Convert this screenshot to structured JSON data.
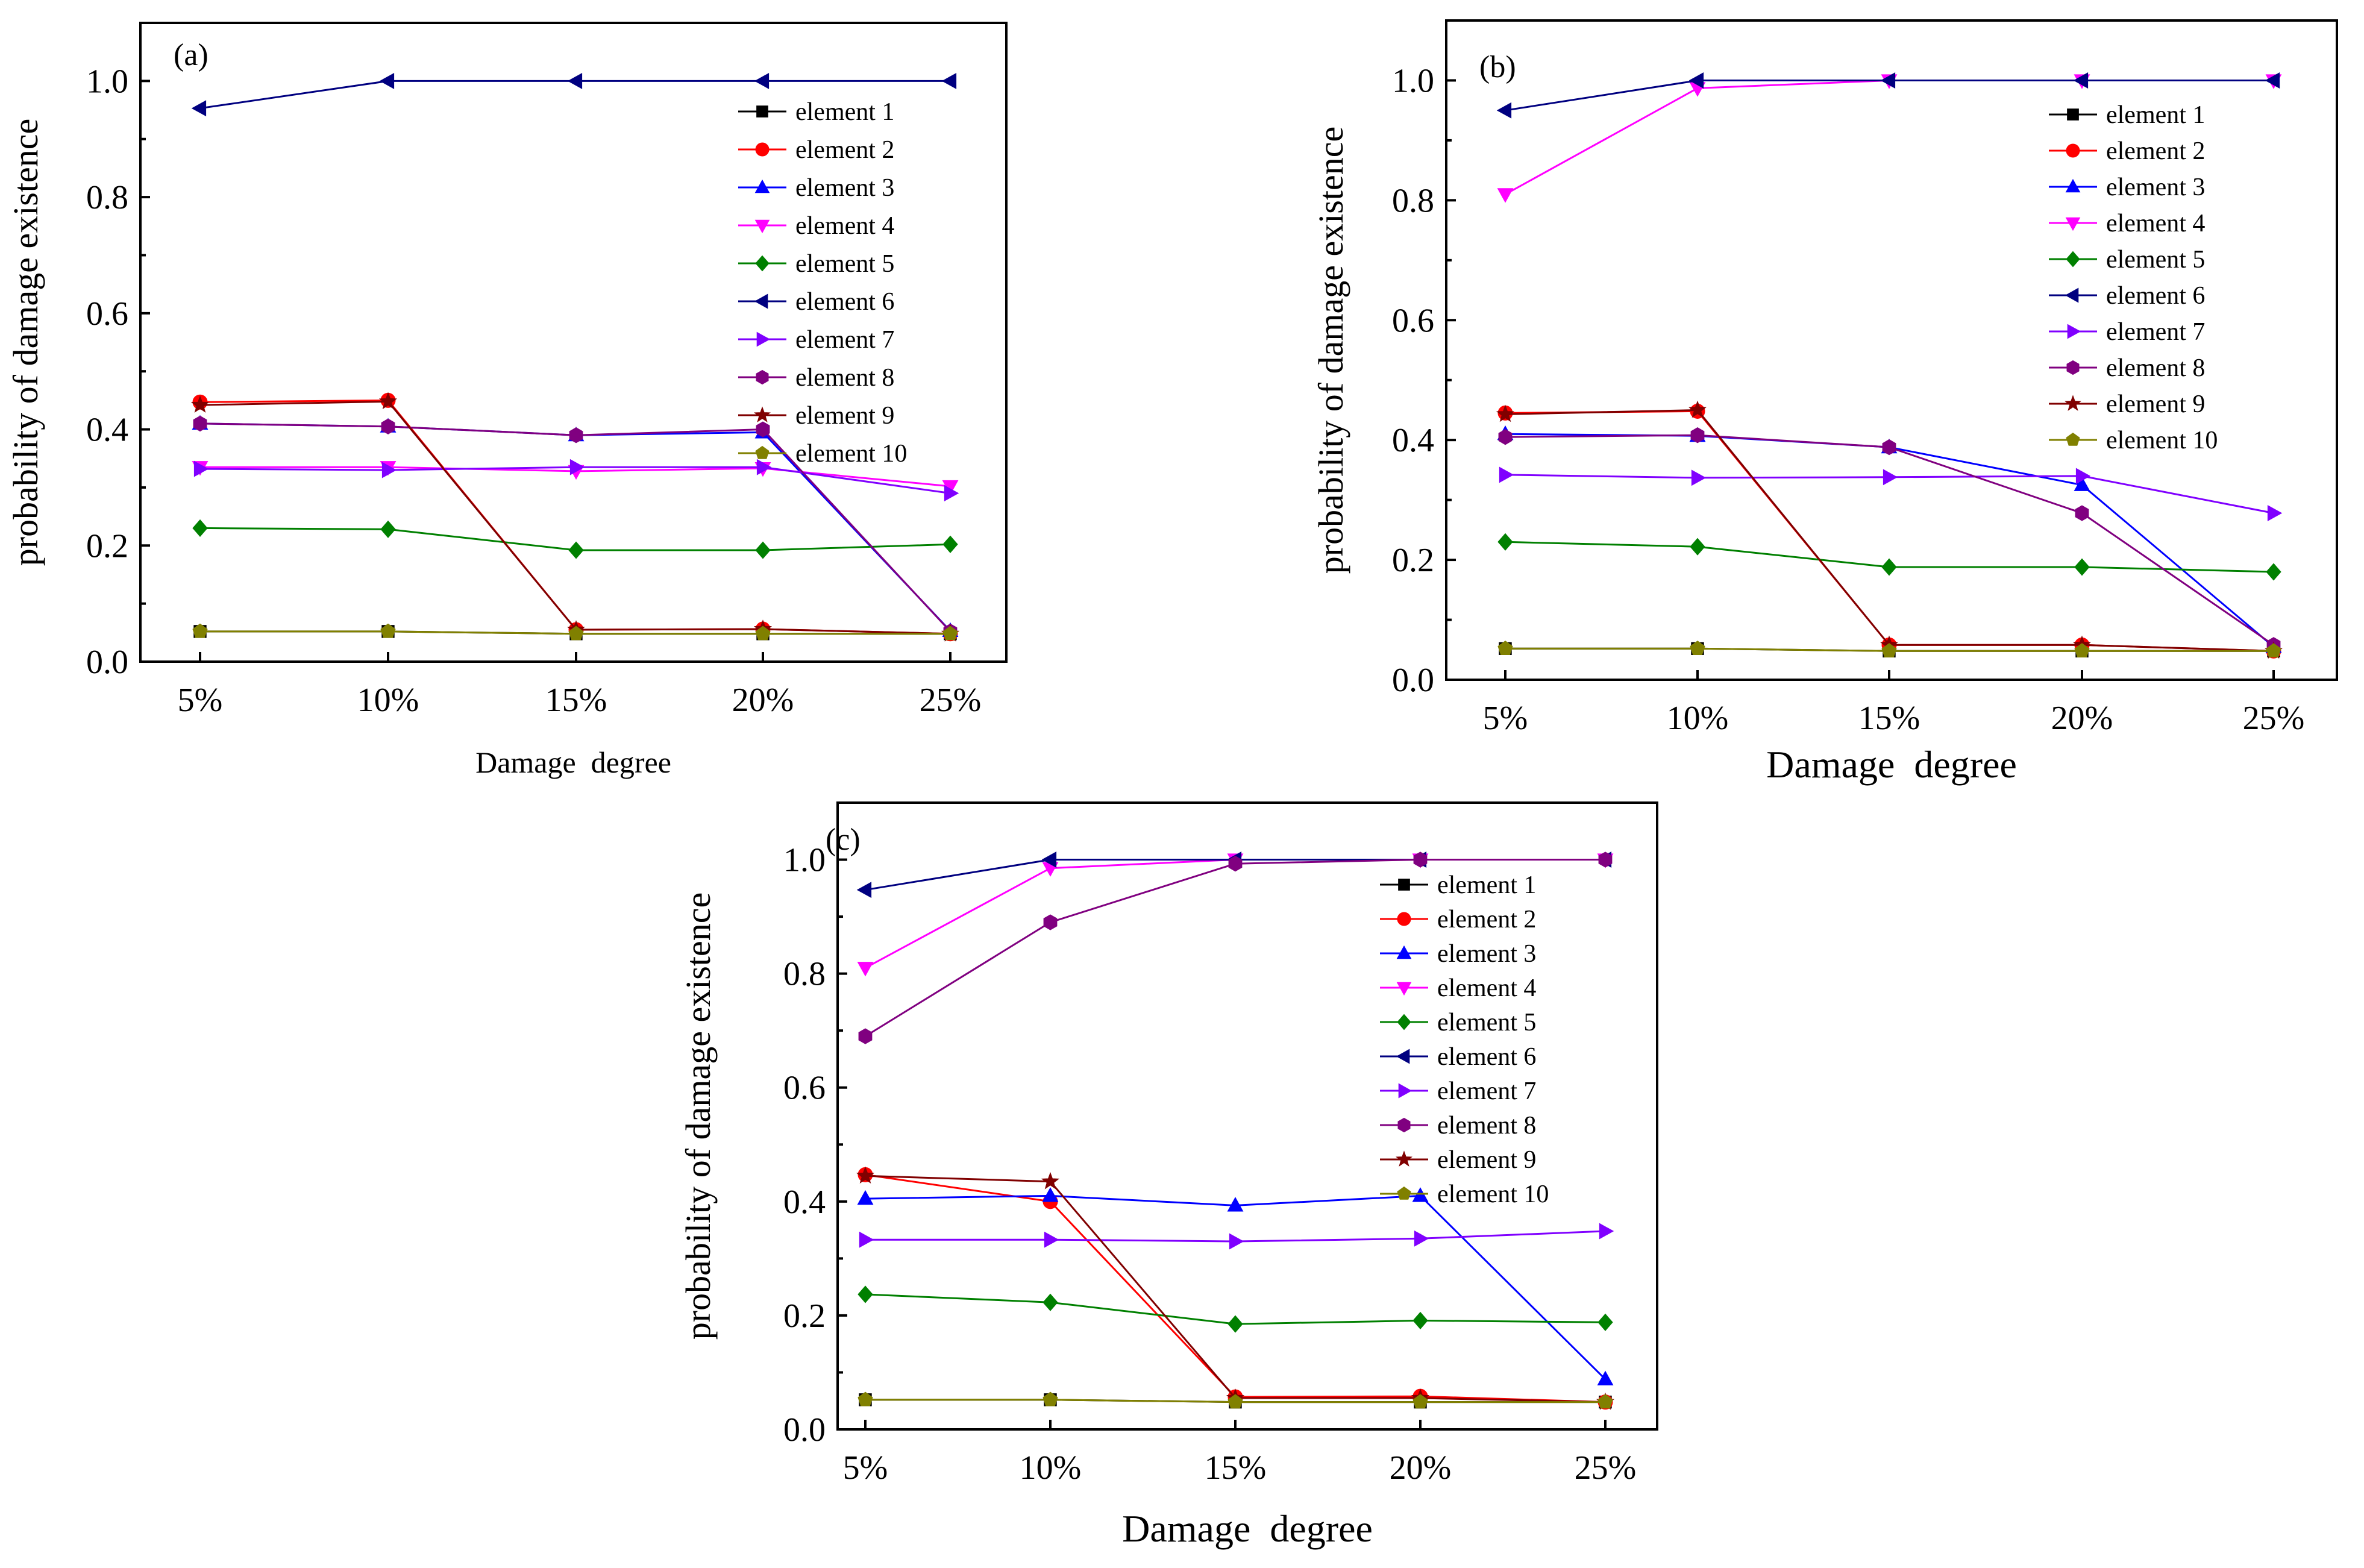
{
  "chart_data": [
    {
      "type": "line",
      "panel_label": "(a)",
      "xlabel": "Damage  degree",
      "ylabel": "probability of damage existence",
      "categories": [
        "5%",
        "10%",
        "15%",
        "20%",
        "25%"
      ],
      "ylim": [
        0,
        1.1
      ],
      "yticks": [
        "0.0",
        "0.2",
        "0.4",
        "0.6",
        "0.8",
        "1.0"
      ],
      "legend_position": "right",
      "series": [
        {
          "name": "element 1",
          "color": "#000000",
          "marker": "square",
          "values": [
            0.052,
            0.052,
            0.048,
            0.048,
            0.048
          ]
        },
        {
          "name": "element 2",
          "color": "#ff0000",
          "marker": "circle",
          "values": [
            0.447,
            0.45,
            0.055,
            0.056,
            0.048
          ]
        },
        {
          "name": "element 3",
          "color": "#0000ff",
          "marker": "triangle-up",
          "values": [
            0.41,
            0.405,
            0.39,
            0.395,
            0.053
          ]
        },
        {
          "name": "element 4",
          "color": "#ff00ff",
          "marker": "triangle-down",
          "values": [
            0.335,
            0.335,
            0.328,
            0.333,
            0.302
          ]
        },
        {
          "name": "element 5",
          "color": "#008000",
          "marker": "diamond",
          "values": [
            0.23,
            0.228,
            0.192,
            0.192,
            0.202
          ]
        },
        {
          "name": "element 6",
          "color": "#000080",
          "marker": "triangle-left",
          "values": [
            0.953,
            1.0,
            1.0,
            1.0,
            1.0
          ]
        },
        {
          "name": "element 7",
          "color": "#8000ff",
          "marker": "triangle-right",
          "values": [
            0.332,
            0.33,
            0.335,
            0.335,
            0.29
          ]
        },
        {
          "name": "element 8",
          "color": "#800080",
          "marker": "hexagon",
          "values": [
            0.41,
            0.405,
            0.39,
            0.4,
            0.052
          ]
        },
        {
          "name": "element 9",
          "color": "#800000",
          "marker": "star",
          "values": [
            0.442,
            0.448,
            0.055,
            0.056,
            0.048
          ]
        },
        {
          "name": "element 10",
          "color": "#808000",
          "marker": "pentagon",
          "values": [
            0.052,
            0.052,
            0.048,
            0.048,
            0.048
          ]
        }
      ]
    },
    {
      "type": "line",
      "panel_label": "(b)",
      "xlabel": "Damage  degree",
      "ylabel": "probability of damage existence",
      "categories": [
        "5%",
        "10%",
        "15%",
        "20%",
        "25%"
      ],
      "ylim": [
        0,
        1.1
      ],
      "yticks": [
        "0.0",
        "0.2",
        "0.4",
        "0.6",
        "0.8",
        "1.0"
      ],
      "legend_position": "right",
      "series": [
        {
          "name": "element 1",
          "color": "#000000",
          "marker": "square",
          "values": [
            0.052,
            0.052,
            0.048,
            0.048,
            0.048
          ]
        },
        {
          "name": "element 2",
          "color": "#ff0000",
          "marker": "circle",
          "values": [
            0.445,
            0.448,
            0.058,
            0.058,
            0.048
          ]
        },
        {
          "name": "element 3",
          "color": "#0000ff",
          "marker": "triangle-up",
          "values": [
            0.41,
            0.407,
            0.388,
            0.325,
            0.055
          ]
        },
        {
          "name": "element 4",
          "color": "#ff00ff",
          "marker": "triangle-down",
          "values": [
            0.81,
            0.987,
            1.0,
            1.0,
            1.0
          ]
        },
        {
          "name": "element 5",
          "color": "#008000",
          "marker": "diamond",
          "values": [
            0.23,
            0.222,
            0.188,
            0.188,
            0.18
          ]
        },
        {
          "name": "element 6",
          "color": "#000080",
          "marker": "triangle-left",
          "values": [
            0.95,
            1.0,
            1.0,
            1.0,
            1.0
          ]
        },
        {
          "name": "element 7",
          "color": "#8000ff",
          "marker": "triangle-right",
          "values": [
            0.342,
            0.337,
            0.338,
            0.34,
            0.278
          ]
        },
        {
          "name": "element 8",
          "color": "#800080",
          "marker": "hexagon",
          "values": [
            0.405,
            0.408,
            0.388,
            0.278,
            0.058
          ]
        },
        {
          "name": "element 9",
          "color": "#800000",
          "marker": "star",
          "values": [
            0.443,
            0.45,
            0.058,
            0.058,
            0.048
          ]
        },
        {
          "name": "element 10",
          "color": "#808000",
          "marker": "pentagon",
          "values": [
            0.052,
            0.052,
            0.048,
            0.048,
            0.048
          ]
        }
      ]
    },
    {
      "type": "line",
      "panel_label": "(c)",
      "xlabel": "Damage  degree",
      "ylabel": "probability of damage existence",
      "categories": [
        "5%",
        "10%",
        "15%",
        "20%",
        "25%"
      ],
      "ylim": [
        0,
        1.1
      ],
      "yticks": [
        "0.0",
        "0.2",
        "0.4",
        "0.6",
        "0.8",
        "1.0"
      ],
      "legend_position": "right",
      "series": [
        {
          "name": "element 1",
          "color": "#000000",
          "marker": "square",
          "values": [
            0.052,
            0.052,
            0.048,
            0.048,
            0.048
          ]
        },
        {
          "name": "element 2",
          "color": "#ff0000",
          "marker": "circle",
          "values": [
            0.447,
            0.4,
            0.057,
            0.058,
            0.048
          ]
        },
        {
          "name": "element 3",
          "color": "#0000ff",
          "marker": "triangle-up",
          "values": [
            0.405,
            0.41,
            0.393,
            0.41,
            0.088
          ]
        },
        {
          "name": "element 4",
          "color": "#ff00ff",
          "marker": "triangle-down",
          "values": [
            0.81,
            0.985,
            1.0,
            1.0,
            1.0
          ]
        },
        {
          "name": "element 5",
          "color": "#008000",
          "marker": "diamond",
          "values": [
            0.237,
            0.223,
            0.185,
            0.191,
            0.188
          ]
        },
        {
          "name": "element 6",
          "color": "#000080",
          "marker": "triangle-left",
          "values": [
            0.947,
            1.0,
            1.0,
            1.0,
            1.0
          ]
        },
        {
          "name": "element 7",
          "color": "#8000ff",
          "marker": "triangle-right",
          "values": [
            0.333,
            0.333,
            0.33,
            0.335,
            0.348
          ]
        },
        {
          "name": "element 8",
          "color": "#800080",
          "marker": "hexagon",
          "values": [
            0.69,
            0.89,
            0.993,
            1.0,
            1.0
          ]
        },
        {
          "name": "element 9",
          "color": "#800000",
          "marker": "star",
          "values": [
            0.445,
            0.435,
            0.055,
            0.055,
            0.048
          ]
        },
        {
          "name": "element 10",
          "color": "#808000",
          "marker": "pentagon",
          "values": [
            0.052,
            0.052,
            0.048,
            0.048,
            0.048
          ]
        }
      ]
    }
  ]
}
